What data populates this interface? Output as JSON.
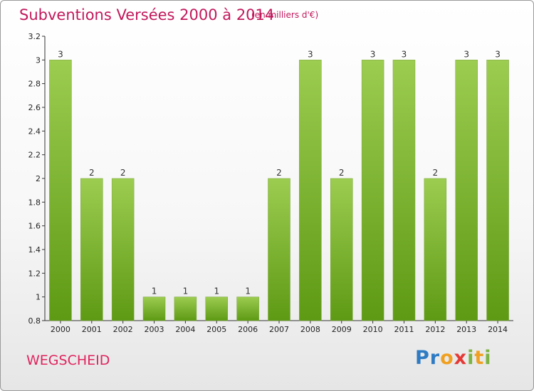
{
  "title": "Subventions Versées 2000 à 2014",
  "subtitle": "(en milliers d'€)",
  "commune": "WEGSCHEID",
  "logo": {
    "p1": "Pr",
    "p2": "o",
    "p3": "x",
    "p4": "i",
    "p5": "t",
    "p6": "i"
  },
  "colors": {
    "bar_top": "#9ccc50",
    "bar_bottom": "#5e9a14",
    "title": "#c2185b"
  },
  "chart_data": {
    "type": "bar",
    "categories": [
      "2000",
      "2001",
      "2002",
      "2003",
      "2004",
      "2005",
      "2006",
      "2007",
      "2008",
      "2009",
      "2010",
      "2011",
      "2012",
      "2013",
      "2014"
    ],
    "values": [
      3,
      2,
      2,
      1,
      1,
      1,
      1,
      2,
      3,
      2,
      3,
      3,
      2,
      3,
      3
    ],
    "ylim": [
      0.8,
      3.2
    ],
    "yticks": [
      "0.8",
      "1",
      "1.2",
      "1.4",
      "1.6",
      "1.8",
      "2",
      "2.2",
      "2.4",
      "2.6",
      "2.8",
      "3",
      "3.2"
    ],
    "grid": false,
    "legend": "none"
  }
}
